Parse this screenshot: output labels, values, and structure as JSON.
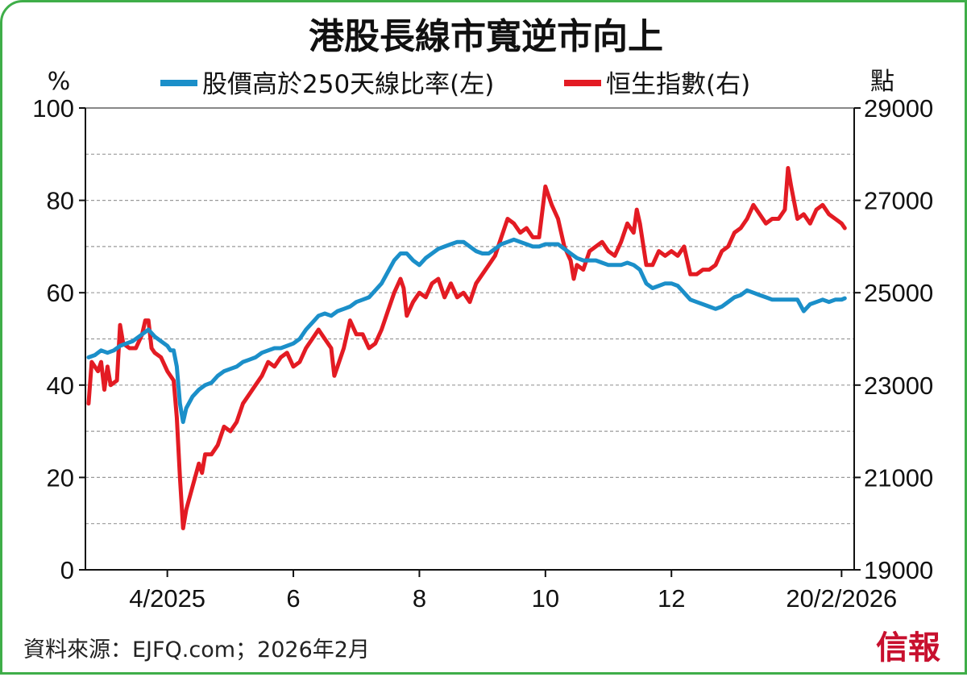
{
  "colors": {
    "breadth": "#1b8fc9",
    "hsi": "#e31b23",
    "frame": "#3fae49",
    "grid": "#9a9a9a"
  },
  "chart_data": {
    "type": "line",
    "title": "港股長線市寬逆市向上",
    "source": "資料來源：EJFQ.com；2026年2月",
    "brand": "信報",
    "left_unit": "%",
    "right_unit": "點",
    "x_range": [
      0,
      12.2
    ],
    "x_ticks": [
      {
        "label": "4/2025",
        "x": 1.3
      },
      {
        "label": "6",
        "x": 3.3
      },
      {
        "label": "8",
        "x": 5.3
      },
      {
        "label": "10",
        "x": 7.3
      },
      {
        "label": "12",
        "x": 9.3
      },
      {
        "label": "20/2/2026",
        "x": 12.0
      }
    ],
    "y_left": {
      "range": [
        0,
        100
      ],
      "ticks": [
        "0",
        "20",
        "40",
        "60",
        "80",
        "100"
      ]
    },
    "y_right": {
      "range": [
        19000,
        29000
      ],
      "ticks": [
        "19000",
        "21000",
        "23000",
        "25000",
        "27000",
        "29000"
      ]
    },
    "series": [
      {
        "name": "股價高於250天線比率(左)",
        "axis": "left",
        "points": [
          [
            0.05,
            46
          ],
          [
            0.15,
            46.5
          ],
          [
            0.25,
            47.5
          ],
          [
            0.35,
            47
          ],
          [
            0.45,
            47.5
          ],
          [
            0.55,
            48.5
          ],
          [
            0.65,
            49
          ],
          [
            0.75,
            49.5
          ],
          [
            0.85,
            50.5
          ],
          [
            0.95,
            51.5
          ],
          [
            1.0,
            52
          ],
          [
            1.1,
            50.5
          ],
          [
            1.2,
            49.5
          ],
          [
            1.3,
            48.5
          ],
          [
            1.35,
            47.5
          ],
          [
            1.4,
            47.5
          ],
          [
            1.45,
            44
          ],
          [
            1.5,
            36
          ],
          [
            1.55,
            32
          ],
          [
            1.6,
            35
          ],
          [
            1.7,
            37.5
          ],
          [
            1.8,
            39
          ],
          [
            1.9,
            40
          ],
          [
            2.0,
            40.5
          ],
          [
            2.1,
            42
          ],
          [
            2.2,
            43
          ],
          [
            2.3,
            43.5
          ],
          [
            2.4,
            44
          ],
          [
            2.5,
            45
          ],
          [
            2.6,
            45.5
          ],
          [
            2.7,
            46
          ],
          [
            2.8,
            47
          ],
          [
            2.9,
            47.5
          ],
          [
            3.0,
            48
          ],
          [
            3.1,
            48
          ],
          [
            3.2,
            48.5
          ],
          [
            3.3,
            49
          ],
          [
            3.4,
            50
          ],
          [
            3.5,
            52
          ],
          [
            3.6,
            53.5
          ],
          [
            3.7,
            55
          ],
          [
            3.8,
            55.5
          ],
          [
            3.9,
            55
          ],
          [
            4.0,
            56
          ],
          [
            4.1,
            56.5
          ],
          [
            4.2,
            57
          ],
          [
            4.3,
            58
          ],
          [
            4.4,
            58.5
          ],
          [
            4.5,
            59
          ],
          [
            4.6,
            60.5
          ],
          [
            4.7,
            62
          ],
          [
            4.8,
            64.5
          ],
          [
            4.9,
            67
          ],
          [
            5.0,
            68.5
          ],
          [
            5.1,
            68.5
          ],
          [
            5.2,
            67
          ],
          [
            5.3,
            66
          ],
          [
            5.4,
            67.5
          ],
          [
            5.5,
            68.5
          ],
          [
            5.6,
            69.5
          ],
          [
            5.7,
            70
          ],
          [
            5.8,
            70.5
          ],
          [
            5.9,
            71
          ],
          [
            6.0,
            71
          ],
          [
            6.1,
            70
          ],
          [
            6.2,
            69
          ],
          [
            6.3,
            68.5
          ],
          [
            6.4,
            68.5
          ],
          [
            6.5,
            69.5
          ],
          [
            6.6,
            70.5
          ],
          [
            6.7,
            71
          ],
          [
            6.8,
            71.5
          ],
          [
            6.9,
            71
          ],
          [
            7.0,
            70.5
          ],
          [
            7.1,
            70
          ],
          [
            7.2,
            70
          ],
          [
            7.3,
            70.5
          ],
          [
            7.4,
            70.5
          ],
          [
            7.5,
            70.5
          ],
          [
            7.6,
            69.5
          ],
          [
            7.7,
            68.5
          ],
          [
            7.8,
            67.5
          ],
          [
            7.9,
            67
          ],
          [
            8.0,
            67
          ],
          [
            8.1,
            67
          ],
          [
            8.2,
            66.5
          ],
          [
            8.3,
            66
          ],
          [
            8.4,
            66
          ],
          [
            8.5,
            66
          ],
          [
            8.6,
            66.5
          ],
          [
            8.7,
            66
          ],
          [
            8.8,
            65
          ],
          [
            8.9,
            62
          ],
          [
            9.0,
            61
          ],
          [
            9.1,
            61.5
          ],
          [
            9.2,
            62
          ],
          [
            9.3,
            62
          ],
          [
            9.4,
            61.5
          ],
          [
            9.5,
            60
          ],
          [
            9.6,
            58.5
          ],
          [
            9.7,
            58
          ],
          [
            9.8,
            57.5
          ],
          [
            9.9,
            57
          ],
          [
            10.0,
            56.5
          ],
          [
            10.1,
            57
          ],
          [
            10.2,
            58
          ],
          [
            10.3,
            59
          ],
          [
            10.4,
            59.5
          ],
          [
            10.5,
            60.5
          ],
          [
            10.6,
            60
          ],
          [
            10.7,
            59.5
          ],
          [
            10.8,
            59
          ],
          [
            10.9,
            58.5
          ],
          [
            11.0,
            58.5
          ],
          [
            11.1,
            58.5
          ],
          [
            11.2,
            58.5
          ],
          [
            11.3,
            58.5
          ],
          [
            11.4,
            56
          ],
          [
            11.5,
            57.5
          ],
          [
            11.6,
            58
          ],
          [
            11.7,
            58.5
          ],
          [
            11.8,
            58
          ],
          [
            11.9,
            58.5
          ],
          [
            12.0,
            58.5
          ],
          [
            12.05,
            58.8
          ]
        ]
      },
      {
        "name": "恒生指數(右)",
        "axis": "right",
        "points": [
          [
            0.05,
            22600
          ],
          [
            0.1,
            23500
          ],
          [
            0.2,
            23300
          ],
          [
            0.25,
            23500
          ],
          [
            0.3,
            22900
          ],
          [
            0.35,
            23400
          ],
          [
            0.4,
            23000
          ],
          [
            0.5,
            23100
          ],
          [
            0.55,
            24300
          ],
          [
            0.6,
            23900
          ],
          [
            0.7,
            23800
          ],
          [
            0.8,
            23800
          ],
          [
            0.9,
            24100
          ],
          [
            0.95,
            24400
          ],
          [
            1.0,
            24400
          ],
          [
            1.05,
            23800
          ],
          [
            1.1,
            23700
          ],
          [
            1.2,
            23600
          ],
          [
            1.3,
            23300
          ],
          [
            1.4,
            23100
          ],
          [
            1.45,
            22300
          ],
          [
            1.5,
            21000
          ],
          [
            1.55,
            19900
          ],
          [
            1.6,
            20300
          ],
          [
            1.7,
            20800
          ],
          [
            1.8,
            21300
          ],
          [
            1.85,
            21100
          ],
          [
            1.9,
            21500
          ],
          [
            2.0,
            21500
          ],
          [
            2.1,
            21700
          ],
          [
            2.2,
            22100
          ],
          [
            2.3,
            22000
          ],
          [
            2.4,
            22200
          ],
          [
            2.5,
            22600
          ],
          [
            2.6,
            22800
          ],
          [
            2.7,
            23000
          ],
          [
            2.8,
            23200
          ],
          [
            2.9,
            23500
          ],
          [
            3.0,
            23400
          ],
          [
            3.1,
            23600
          ],
          [
            3.2,
            23700
          ],
          [
            3.3,
            23400
          ],
          [
            3.4,
            23500
          ],
          [
            3.5,
            23800
          ],
          [
            3.6,
            24000
          ],
          [
            3.7,
            24200
          ],
          [
            3.8,
            24000
          ],
          [
            3.9,
            23800
          ],
          [
            3.95,
            23200
          ],
          [
            4.0,
            23400
          ],
          [
            4.1,
            23800
          ],
          [
            4.2,
            24400
          ],
          [
            4.3,
            24100
          ],
          [
            4.4,
            24100
          ],
          [
            4.5,
            23800
          ],
          [
            4.6,
            23900
          ],
          [
            4.7,
            24200
          ],
          [
            4.8,
            24600
          ],
          [
            4.9,
            25000
          ],
          [
            5.0,
            25300
          ],
          [
            5.05,
            25100
          ],
          [
            5.1,
            24500
          ],
          [
            5.2,
            24800
          ],
          [
            5.3,
            25000
          ],
          [
            5.4,
            24900
          ],
          [
            5.5,
            25200
          ],
          [
            5.6,
            25300
          ],
          [
            5.7,
            24900
          ],
          [
            5.8,
            25200
          ],
          [
            5.9,
            24900
          ],
          [
            6.0,
            25000
          ],
          [
            6.1,
            24800
          ],
          [
            6.2,
            25200
          ],
          [
            6.3,
            25400
          ],
          [
            6.4,
            25600
          ],
          [
            6.5,
            25800
          ],
          [
            6.6,
            26200
          ],
          [
            6.7,
            26600
          ],
          [
            6.8,
            26500
          ],
          [
            6.9,
            26300
          ],
          [
            7.0,
            26400
          ],
          [
            7.1,
            26200
          ],
          [
            7.2,
            26200
          ],
          [
            7.3,
            27300
          ],
          [
            7.4,
            26900
          ],
          [
            7.5,
            26600
          ],
          [
            7.6,
            26000
          ],
          [
            7.7,
            25700
          ],
          [
            7.75,
            25300
          ],
          [
            7.8,
            25600
          ],
          [
            7.9,
            25500
          ],
          [
            8.0,
            25900
          ],
          [
            8.1,
            26000
          ],
          [
            8.2,
            26100
          ],
          [
            8.3,
            25900
          ],
          [
            8.4,
            25800
          ],
          [
            8.5,
            26100
          ],
          [
            8.6,
            26500
          ],
          [
            8.7,
            26300
          ],
          [
            8.75,
            26800
          ],
          [
            8.8,
            26500
          ],
          [
            8.9,
            25600
          ],
          [
            9.0,
            25600
          ],
          [
            9.1,
            25900
          ],
          [
            9.2,
            25800
          ],
          [
            9.3,
            25900
          ],
          [
            9.4,
            25800
          ],
          [
            9.5,
            26000
          ],
          [
            9.6,
            25400
          ],
          [
            9.7,
            25400
          ],
          [
            9.8,
            25500
          ],
          [
            9.9,
            25500
          ],
          [
            10.0,
            25600
          ],
          [
            10.1,
            25900
          ],
          [
            10.2,
            26000
          ],
          [
            10.3,
            26300
          ],
          [
            10.4,
            26400
          ],
          [
            10.5,
            26600
          ],
          [
            10.6,
            26900
          ],
          [
            10.7,
            26700
          ],
          [
            10.8,
            26500
          ],
          [
            10.9,
            26600
          ],
          [
            11.0,
            26600
          ],
          [
            11.1,
            26800
          ],
          [
            11.15,
            27700
          ],
          [
            11.2,
            27300
          ],
          [
            11.3,
            26600
          ],
          [
            11.4,
            26700
          ],
          [
            11.5,
            26500
          ],
          [
            11.6,
            26800
          ],
          [
            11.7,
            26900
          ],
          [
            11.8,
            26700
          ],
          [
            11.9,
            26600
          ],
          [
            12.0,
            26500
          ],
          [
            12.05,
            26400
          ]
        ]
      }
    ]
  }
}
